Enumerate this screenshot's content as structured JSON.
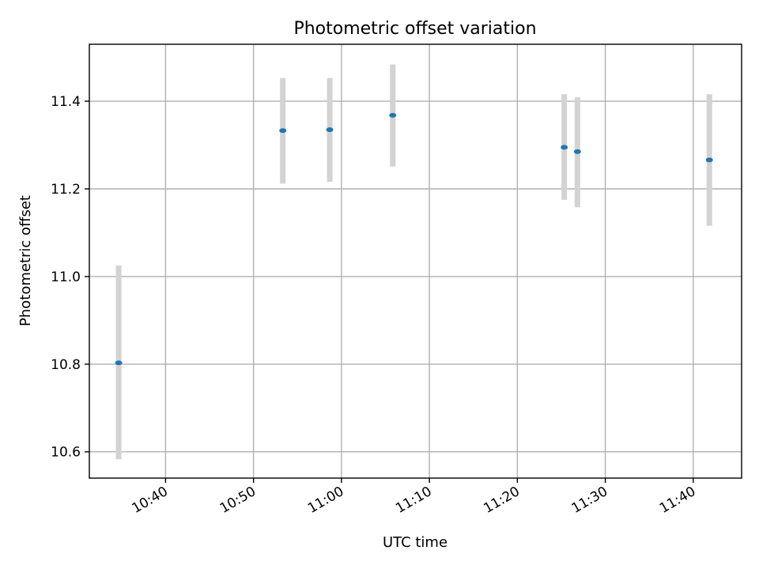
{
  "chart_data": {
    "type": "scatter",
    "title": "Photometric offset variation",
    "xlabel": "UTC time",
    "ylabel": "Photometric offset",
    "x_ticks": [
      "10:40",
      "10:50",
      "11:00",
      "11:10",
      "11:20",
      "11:30",
      "11:40"
    ],
    "y_ticks": [
      10.6,
      10.8,
      11.0,
      11.2,
      11.4
    ],
    "xlim": [
      "10:31:20",
      "11:45:30"
    ],
    "ylim": [
      10.54,
      11.53
    ],
    "grid": true,
    "series": [
      {
        "points": [
          {
            "x": "10:34:40",
            "y": 10.803,
            "y_low": 10.583,
            "y_high": 11.025
          },
          {
            "x": "10:53:20",
            "y": 11.333,
            "y_low": 11.212,
            "y_high": 11.453
          },
          {
            "x": "10:58:40",
            "y": 11.335,
            "y_low": 11.216,
            "y_high": 11.453
          },
          {
            "x": "11:05:50",
            "y": 11.368,
            "y_low": 11.251,
            "y_high": 11.484
          },
          {
            "x": "11:25:20",
            "y": 11.295,
            "y_low": 11.175,
            "y_high": 11.416
          },
          {
            "x": "11:26:50",
            "y": 11.285,
            "y_low": 11.158,
            "y_high": 11.409
          },
          {
            "x": "11:41:50",
            "y": 11.266,
            "y_low": 11.116,
            "y_high": 11.416
          }
        ]
      }
    ],
    "colors": {
      "marker": "#1f77b4",
      "errorbar": "#d3d3d3",
      "grid": "#b0b0b0"
    }
  }
}
